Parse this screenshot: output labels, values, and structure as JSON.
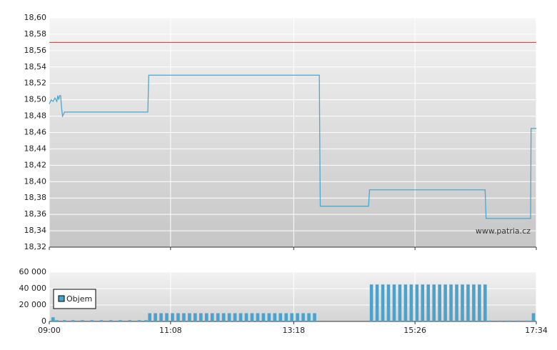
{
  "chart_data": [
    {
      "type": "line",
      "x": [
        540,
        542,
        544,
        546,
        548,
        549,
        550,
        551,
        552,
        553,
        554,
        555,
        556,
        644,
        645,
        825,
        826,
        877,
        878,
        1000,
        1001,
        1048,
        1048.5,
        1054
      ],
      "series": [
        {
          "color": "#4aa8d0",
          "values": [
            18.495,
            18.5,
            18.498,
            18.502,
            18.498,
            18.505,
            18.5,
            18.505,
            18.505,
            18.49,
            18.48,
            18.482,
            18.485,
            18.485,
            18.53,
            18.53,
            18.37,
            18.37,
            18.39,
            18.39,
            18.355,
            18.355,
            18.465,
            18.465
          ]
        }
      ],
      "reference_value": 18.57,
      "reference_color": "#e03030",
      "xlim": [
        540,
        1054
      ],
      "xticks": [
        540,
        668,
        798,
        926,
        1054
      ],
      "ylim": [
        18.32,
        18.6
      ],
      "yticks": [
        {
          "value": 18.32,
          "label": "18,32"
        },
        {
          "value": 18.34,
          "label": "18,34"
        },
        {
          "value": 18.36,
          "label": "18,36"
        },
        {
          "value": 18.38,
          "label": "18,38"
        },
        {
          "value": 18.4,
          "label": "18,40"
        },
        {
          "value": 18.42,
          "label": "18,42"
        },
        {
          "value": 18.44,
          "label": "18,44"
        },
        {
          "value": 18.46,
          "label": "18,46"
        },
        {
          "value": 18.48,
          "label": "18,48"
        },
        {
          "value": 18.5,
          "label": "18,50"
        },
        {
          "value": 18.52,
          "label": "18,52"
        },
        {
          "value": 18.54,
          "label": "18,54"
        },
        {
          "value": 18.56,
          "label": "18,56"
        },
        {
          "value": 18.58,
          "label": "18,58"
        },
        {
          "value": 18.6,
          "label": "18,60"
        }
      ],
      "grid": true,
      "annotation": "www.patria.cz"
    },
    {
      "type": "bar",
      "x": [
        544,
        548,
        556,
        565,
        575,
        585,
        595,
        605,
        615,
        625,
        635,
        642,
        646,
        652,
        658,
        664,
        670,
        676,
        682,
        688,
        694,
        700,
        706,
        712,
        718,
        724,
        730,
        736,
        742,
        748,
        754,
        760,
        766,
        772,
        778,
        784,
        790,
        796,
        802,
        808,
        814,
        820,
        880,
        886,
        892,
        898,
        904,
        910,
        916,
        922,
        928,
        934,
        940,
        946,
        952,
        958,
        964,
        970,
        976,
        982,
        988,
        994,
        1000,
        1005,
        1015,
        1025,
        1035,
        1045,
        1051
      ],
      "series": [
        {
          "name": "Objem",
          "color": "#4aa3cc",
          "values": [
            5000,
            1500,
            1500,
            1500,
            1500,
            1500,
            1500,
            1500,
            1500,
            1500,
            1500,
            1500,
            10000,
            10000,
            10000,
            10000,
            10000,
            10000,
            10000,
            10000,
            10000,
            10000,
            10000,
            10000,
            10000,
            10000,
            10000,
            10000,
            10000,
            10000,
            10000,
            10000,
            10000,
            10000,
            10000,
            10000,
            10000,
            10000,
            10000,
            10000,
            10000,
            10000,
            45000,
            45000,
            45000,
            45000,
            45000,
            45000,
            45000,
            45000,
            45000,
            45000,
            45000,
            45000,
            45000,
            45000,
            45000,
            45000,
            45000,
            45000,
            45000,
            45000,
            45000,
            1000,
            1000,
            1000,
            1000,
            1000,
            10000
          ]
        }
      ],
      "xlim": [
        540,
        1054
      ],
      "xticks": [
        {
          "value": 540,
          "label": "09:00"
        },
        {
          "value": 668,
          "label": "11:08"
        },
        {
          "value": 798,
          "label": "13:18"
        },
        {
          "value": 926,
          "label": "15:26"
        },
        {
          "value": 1054,
          "label": "17:34"
        }
      ],
      "ylim": [
        0,
        60000
      ],
      "yticks": [
        0,
        {
          "value": 20000,
          "label": "20 000"
        },
        {
          "value": 40000,
          "label": "40 000"
        },
        {
          "value": 60000,
          "label": "60 000"
        }
      ],
      "grid": true,
      "legend": "top-left"
    }
  ]
}
